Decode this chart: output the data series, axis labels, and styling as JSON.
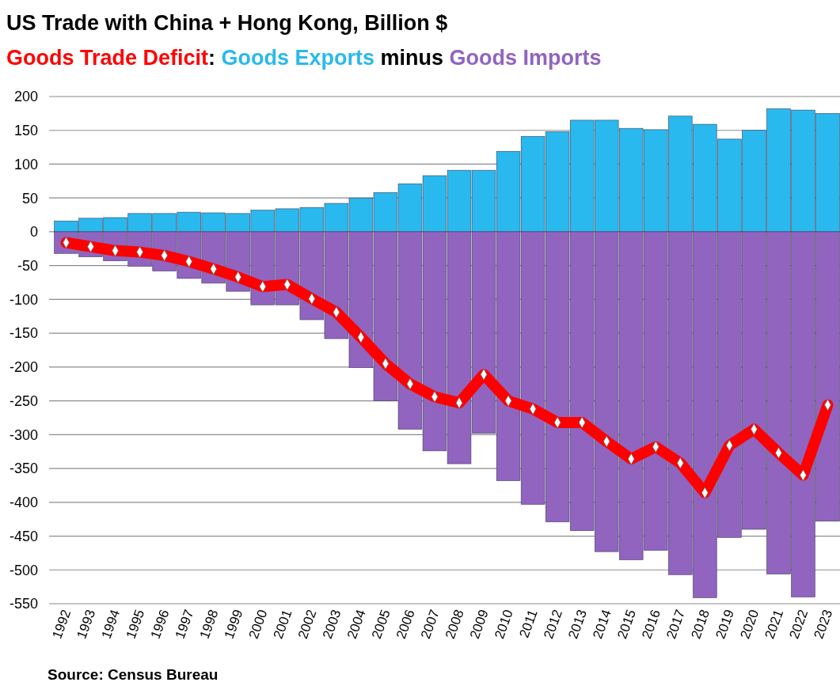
{
  "chart_data": {
    "type": "bar",
    "title": "US Trade with China + Hong Kong, Billion $",
    "legend": "top",
    "categories": [
      "1992",
      "1993",
      "1994",
      "1995",
      "1996",
      "1997",
      "1998",
      "1999",
      "2000",
      "2001",
      "2002",
      "2003",
      "2004",
      "2005",
      "2006",
      "2007",
      "2008",
      "2009",
      "2010",
      "2011",
      "2012",
      "2013",
      "2014",
      "2015",
      "2016",
      "2017",
      "2018",
      "2019",
      "2020",
      "2021",
      "2022",
      "2023"
    ],
    "stacked": true,
    "series": [
      {
        "name": "Goods Exports",
        "color": "#29b9ee",
        "values": [
          16,
          20,
          21,
          27,
          27,
          29,
          28,
          27,
          32,
          34,
          36,
          42,
          50,
          58,
          71,
          83,
          91,
          91,
          119,
          141,
          148,
          165,
          165,
          153,
          151,
          171,
          159,
          137,
          150,
          182,
          180,
          175
        ]
      },
      {
        "name": "Goods Imports",
        "color": "#9164bf",
        "values": [
          -32,
          -37,
          -43,
          -51,
          -58,
          -69,
          -76,
          -88,
          -108,
          -108,
          -130,
          -158,
          -201,
          -250,
          -292,
          -324,
          -343,
          -298,
          -368,
          -403,
          -429,
          -442,
          -473,
          -485,
          -471,
          -507,
          -541,
          -452,
          -440,
          -506,
          -540,
          -428
        ]
      },
      {
        "name": "Goods Trade Deficit",
        "type": "line",
        "color": "#ff0000",
        "marker": "diamond",
        "values": [
          -16,
          -22,
          -28,
          -30,
          -35,
          -44,
          -55,
          -67,
          -81,
          -78,
          -99,
          -119,
          -156,
          -195,
          -225,
          -244,
          -253,
          -211,
          -250,
          -262,
          -282,
          -282,
          -310,
          -336,
          -318,
          -342,
          -386,
          -316,
          -292,
          -327,
          -360,
          -256
        ]
      }
    ],
    "ylim": [
      -550,
      200
    ],
    "yticks": [
      200,
      150,
      100,
      50,
      0,
      -50,
      -100,
      -150,
      -200,
      -250,
      -300,
      -350,
      -400,
      -450,
      -500,
      -550
    ],
    "grid": "y",
    "annotations": [
      ":",
      "minus",
      "Source: Census Bureau"
    ]
  }
}
